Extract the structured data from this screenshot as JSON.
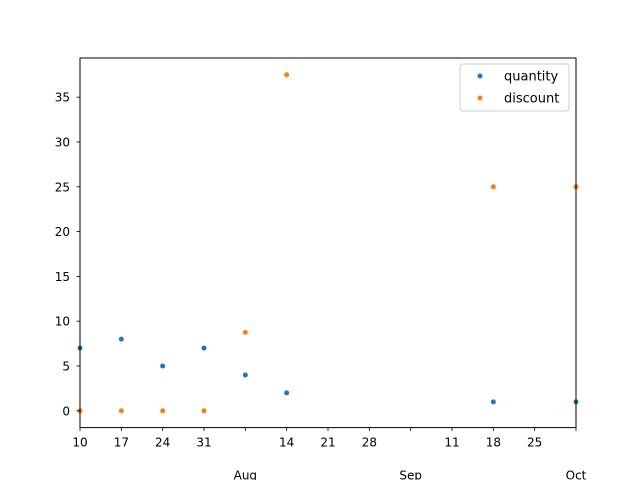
{
  "chart_data": {
    "type": "scatter",
    "title": "",
    "xlabel": "",
    "ylabel": "",
    "x_axis_kind": "date",
    "xlim": [
      "2000-07-10",
      "2000-10-02"
    ],
    "ylim": [
      -1.875,
      39.375
    ],
    "x": [
      "2000-07-10",
      "2000-07-17",
      "2000-07-24",
      "2000-07-31",
      "2000-08-07",
      "2000-08-14",
      "2000-09-18",
      "2000-10-02"
    ],
    "series": [
      {
        "name": "quantity",
        "color": "#1f77b4",
        "values": [
          7,
          8,
          5,
          7,
          4,
          2,
          1,
          1
        ]
      },
      {
        "name": "discount",
        "color": "#ff7f0e",
        "values": [
          0,
          0,
          0,
          0,
          8.75,
          37.5,
          25,
          25
        ]
      }
    ],
    "x_ticks": [
      {
        "date": "2000-07-10",
        "label": "10"
      },
      {
        "date": "2000-07-17",
        "label": "17"
      },
      {
        "date": "2000-07-24",
        "label": "24"
      },
      {
        "date": "2000-07-31",
        "label": "31"
      },
      {
        "date": "2000-08-07",
        "label": ""
      },
      {
        "date": "2000-08-14",
        "label": "14"
      },
      {
        "date": "2000-08-21",
        "label": "21"
      },
      {
        "date": "2000-08-28",
        "label": "28"
      },
      {
        "date": "2000-09-04",
        "label": ""
      },
      {
        "date": "2000-09-11",
        "label": "11"
      },
      {
        "date": "2000-09-18",
        "label": "18"
      },
      {
        "date": "2000-09-25",
        "label": "25"
      },
      {
        "date": "2000-10-02",
        "label": ""
      }
    ],
    "x_month_labels": [
      {
        "date": "2000-08-07",
        "label": "Aug"
      },
      {
        "date": "2000-09-04",
        "label": "Sep"
      },
      {
        "date": "2000-10-02",
        "label": "Oct"
      }
    ],
    "y_ticks": [
      0,
      5,
      10,
      15,
      20,
      25,
      30,
      35
    ],
    "grid": false,
    "legend": "upper right"
  }
}
